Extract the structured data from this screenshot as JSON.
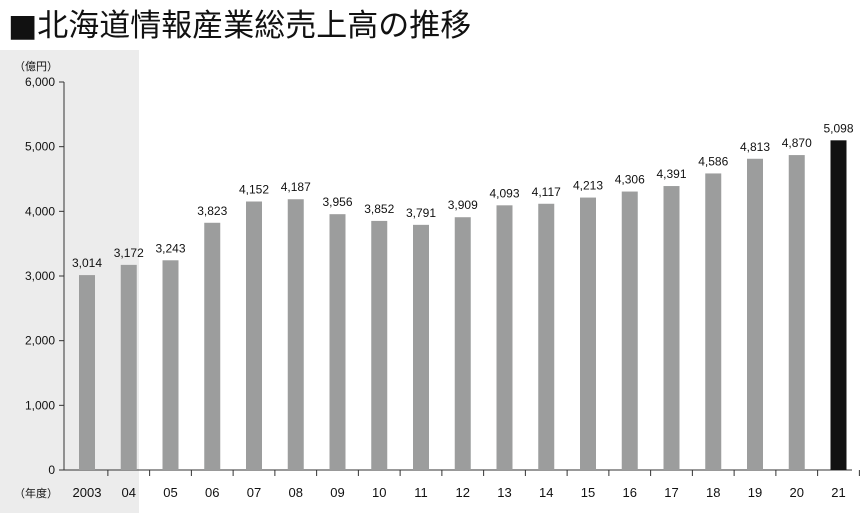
{
  "title": "■北海道情報産業総売上高の推移",
  "chart_data": {
    "type": "bar",
    "unit_label": "（億円）",
    "year_label": "（年度）",
    "categories": [
      "2003",
      "04",
      "05",
      "06",
      "07",
      "08",
      "09",
      "10",
      "11",
      "12",
      "13",
      "14",
      "15",
      "16",
      "17",
      "18",
      "19",
      "20",
      "21"
    ],
    "values": [
      3014,
      3172,
      3243,
      3823,
      4152,
      4187,
      3956,
      3852,
      3791,
      3909,
      4093,
      4117,
      4213,
      4306,
      4391,
      4586,
      4813,
      4870,
      5098
    ],
    "value_labels": [
      "3,014",
      "3,172",
      "3,243",
      "3,823",
      "4,152",
      "4,187",
      "3,956",
      "3,852",
      "3,791",
      "3,909",
      "4,093",
      "4,117",
      "4,213",
      "4,306",
      "4,391",
      "4,586",
      "4,813",
      "4,870",
      "5,098"
    ],
    "y_ticks": [
      "0",
      "1,000",
      "2,000",
      "3,000",
      "4,000",
      "5,000",
      "6,000"
    ],
    "ylim": [
      0,
      6000
    ],
    "highlight_index": 18,
    "colors": {
      "bar": "#9c9d9d",
      "highlight": "#111111",
      "band": "#ececec",
      "axis": "#333333"
    }
  }
}
